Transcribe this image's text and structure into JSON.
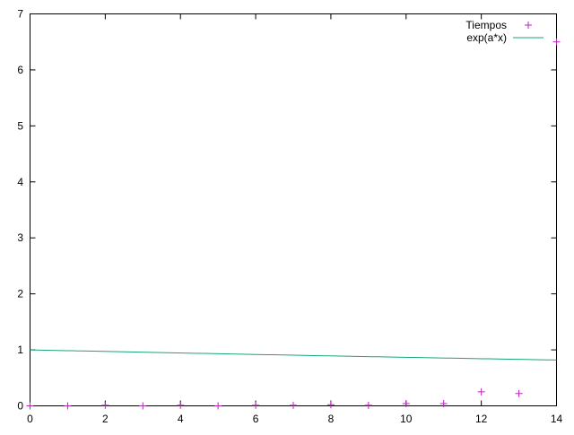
{
  "chart_data": {
    "type": "scatter",
    "title": "",
    "xlabel": "",
    "ylabel": "",
    "xlim": [
      0,
      14
    ],
    "ylim": [
      0,
      7
    ],
    "xticks": [
      0,
      2,
      4,
      6,
      8,
      10,
      12,
      14
    ],
    "yticks": [
      0,
      1,
      2,
      3,
      4,
      5,
      6,
      7
    ],
    "grid": false,
    "legend_position": "top-right",
    "series": [
      {
        "name": "Tiempos",
        "kind": "points",
        "marker": "plus",
        "color": "#c020c0",
        "x": [
          0,
          1,
          2,
          3,
          4,
          5,
          6,
          7,
          8,
          9,
          10,
          11,
          12,
          13,
          14
        ],
        "y": [
          0.0,
          0.0,
          0.01,
          0.0,
          0.01,
          0.0,
          0.01,
          0.01,
          0.02,
          0.01,
          0.04,
          0.04,
          0.25,
          0.22,
          6.5
        ]
      },
      {
        "name": "exp(a*x)",
        "kind": "line",
        "color": "#1aa37a",
        "function": "exp(a*x)",
        "a": -0.0143
      }
    ]
  }
}
